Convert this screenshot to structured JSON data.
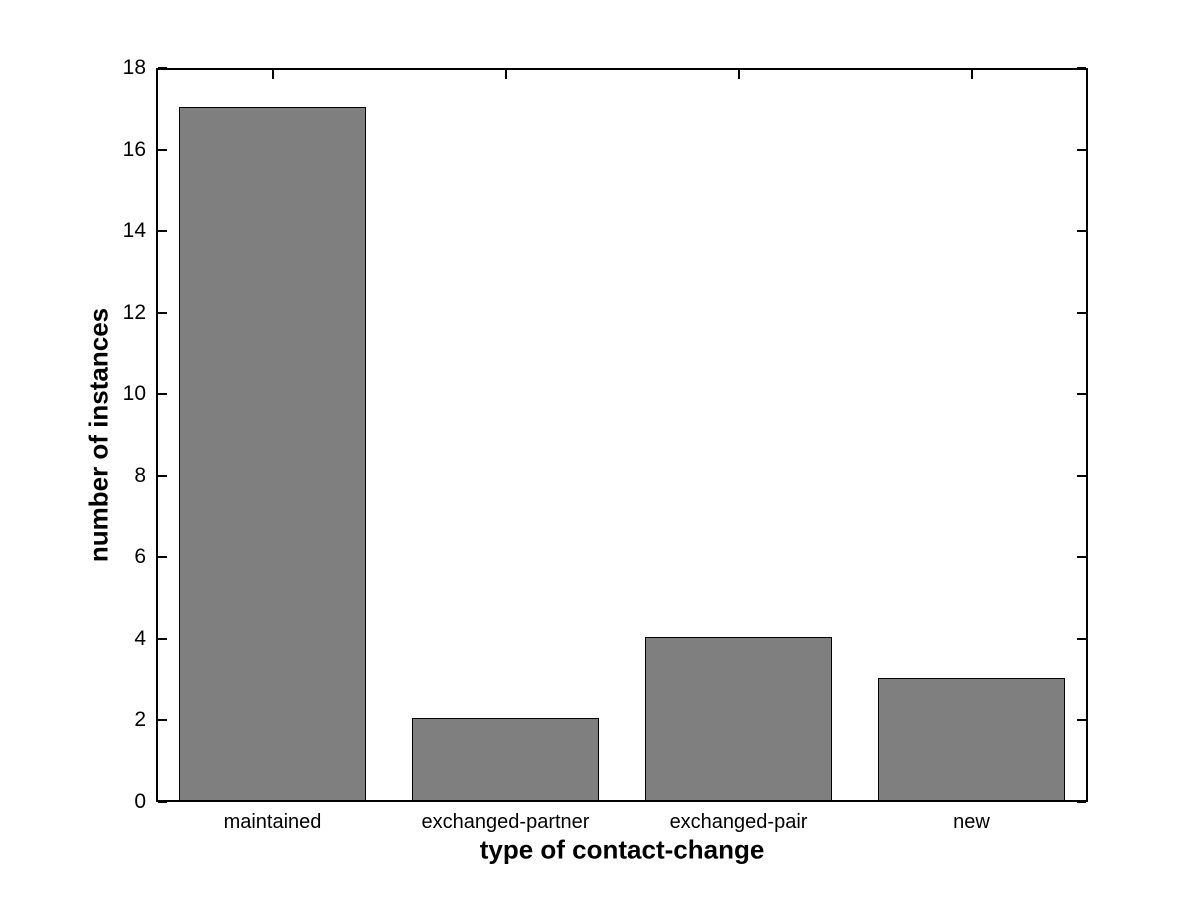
{
  "chart_data": {
    "type": "bar",
    "categories": [
      "maintained",
      "exchanged-partner",
      "exchanged-pair",
      "new"
    ],
    "values": [
      17,
      2,
      4,
      3
    ],
    "title": "",
    "xlabel": "type of contact-change",
    "ylabel": "number of instances",
    "ylim": [
      0,
      18
    ],
    "yticks": [
      0,
      2,
      4,
      6,
      8,
      10,
      12,
      14,
      16,
      18
    ],
    "bar_width_fraction": 0.8,
    "grid": false,
    "legend_position": "none",
    "colors": {
      "bar_fill": "#7f7f7f",
      "bar_edge": "#000000",
      "axis": "#000000",
      "background": "#ffffff",
      "text": "#000000"
    }
  }
}
